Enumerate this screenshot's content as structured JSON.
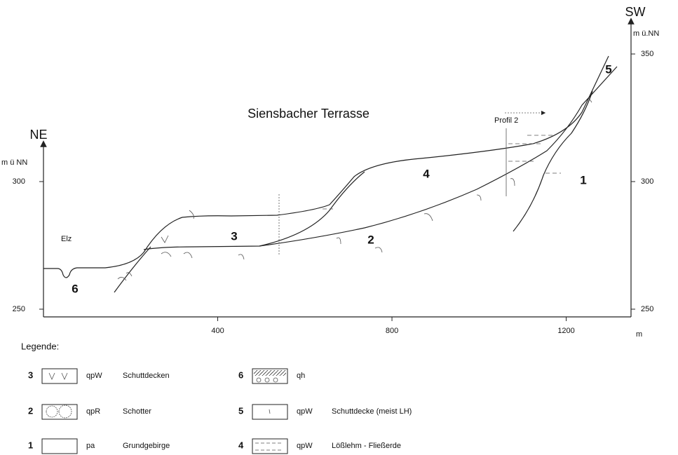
{
  "title": "Siensbacher Terrasse",
  "left_axis": {
    "direction": "NE",
    "unit": "m ü NN",
    "ticks": [
      250,
      300
    ]
  },
  "right_axis": {
    "direction": "SW",
    "unit": "m ü.NN",
    "ticks": [
      250,
      300,
      350
    ]
  },
  "x_axis": {
    "unit": "m",
    "ticks": [
      400,
      800,
      1200
    ]
  },
  "annotations": {
    "profile": "Profil 2",
    "river": "Elz"
  },
  "section_labels": [
    6,
    3,
    2,
    4,
    1,
    5
  ],
  "legend": {
    "title": "Legende:",
    "items": [
      {
        "number": 3,
        "code": "qpW",
        "label": "Schuttdecken"
      },
      {
        "number": 2,
        "code": "qpR",
        "label": "Schotter"
      },
      {
        "number": 1,
        "code": "pa",
        "label": "Grundgebirge"
      },
      {
        "number": 6,
        "code": "qh"
      },
      {
        "number": 5,
        "code": "qpW",
        "label": "Schuttdecke (meist LH)"
      },
      {
        "number": 4,
        "code": "qpW",
        "label": "Lößlehm - Fließerde"
      }
    ]
  }
}
